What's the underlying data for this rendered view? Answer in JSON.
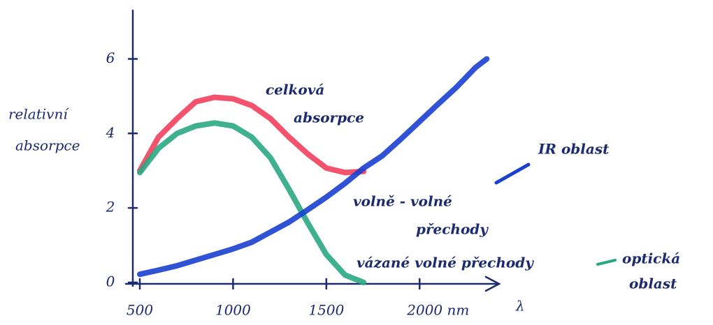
{
  "chart_data": {
    "type": "line",
    "x_label": "λ",
    "y_label": [
      "relativní",
      "absorpce"
    ],
    "x": [
      500,
      600,
      700,
      800,
      900,
      1000,
      1100,
      1200,
      1300,
      1400,
      1500,
      1600,
      1700,
      1800,
      1900,
      2000,
      2100,
      2200,
      2300,
      2360
    ],
    "series": [
      {
        "color": "#f2405c",
        "values": [
          3.0,
          3.9,
          4.4,
          4.85,
          4.97,
          4.93,
          4.75,
          4.4,
          3.9,
          3.45,
          3.07,
          2.95,
          2.98,
          null,
          null,
          null,
          null,
          null,
          null,
          null
        ]
      },
      {
        "color": "#2aa882",
        "values": [
          2.95,
          3.6,
          4.0,
          4.2,
          4.28,
          4.2,
          3.9,
          3.35,
          2.5,
          1.6,
          0.75,
          0.2,
          0.0,
          null,
          null,
          null,
          null,
          null,
          null,
          null
        ]
      },
      {
        "color": "#1a3fd0",
        "values": [
          0.22,
          0.33,
          0.45,
          0.6,
          0.75,
          0.9,
          1.08,
          1.35,
          1.62,
          1.95,
          2.29,
          2.66,
          3.07,
          3.4,
          3.85,
          4.32,
          4.79,
          5.25,
          5.77,
          6.0
        ]
      }
    ],
    "annotations": [
      {
        "color": "#f2405c",
        "lines": [
          "celková",
          "absorpce"
        ]
      },
      {
        "color": "#1a3fd0",
        "lines": [
          "IR oblast"
        ]
      },
      {
        "color": "#1a3fd0",
        "lines": [
          "volně - volné",
          "přechody"
        ]
      },
      {
        "color": "#2aa882",
        "lines": [
          "vázané volné přechody",
          "optická",
          "oblast"
        ]
      }
    ],
    "xlim": [
      425,
      2430
    ],
    "ylim": [
      0,
      7.3
    ],
    "xticks": [
      500,
      1000,
      1500,
      {
        "value": 2000,
        "label": "2000 nm"
      }
    ],
    "yticks": [
      0,
      2,
      4,
      6
    ]
  }
}
